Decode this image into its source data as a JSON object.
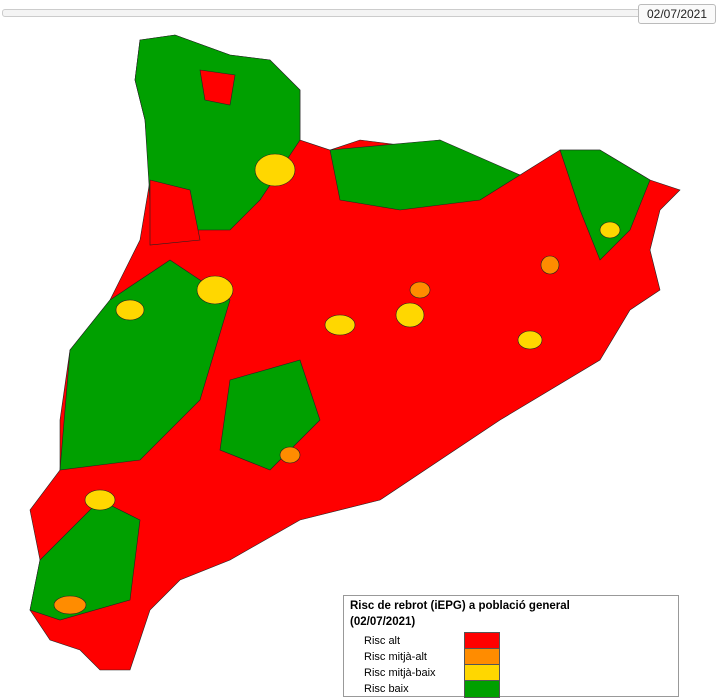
{
  "slider": {
    "date": "02/07/2021"
  },
  "legend": {
    "title": "Risc de rebrot (iEPG) a població general",
    "subtitle": "(02/07/2021)",
    "items": [
      {
        "label": "Risc alt",
        "color": "#ff0000"
      },
      {
        "label": "Risc mitjà-alt",
        "color": "#ff8c00"
      },
      {
        "label": "Risc mitjà-baix",
        "color": "#ffd700"
      },
      {
        "label": "Risc baix",
        "color": "#00a000"
      }
    ]
  }
}
